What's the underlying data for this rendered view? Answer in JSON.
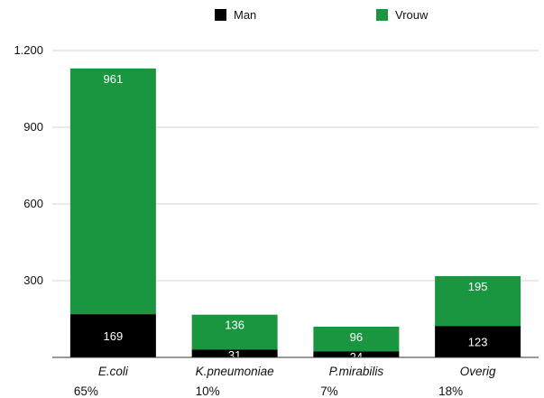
{
  "chart_data": {
    "type": "bar",
    "stacked": true,
    "categories": [
      "E.coli",
      "K.pneumoniae",
      "P.mirabilis",
      "Overig"
    ],
    "category_percentages": [
      "65%",
      "10%",
      "7%",
      "18%"
    ],
    "series": [
      {
        "name": "Man",
        "color": "#000000",
        "values": [
          169,
          31,
          24,
          123
        ]
      },
      {
        "name": "Vrouw",
        "color": "#1a9641",
        "values": [
          961,
          136,
          96,
          195
        ]
      }
    ],
    "ylim": [
      0,
      1200
    ],
    "yticks": [
      300,
      600,
      900,
      1200
    ],
    "ytick_labels": [
      "300",
      "600",
      "900",
      "1.200"
    ],
    "grid": true,
    "legend_position": "top-center"
  }
}
